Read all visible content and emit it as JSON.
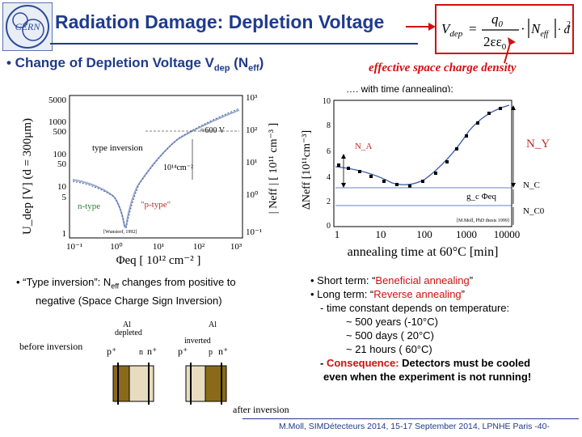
{
  "logo": {
    "text": "CERN"
  },
  "title": "Radiation Damage: Depletion Voltage",
  "formula": {
    "lhs": "V",
    "lhs_sub": "dep",
    "eq": "=",
    "num": "q",
    "num_sub": "0",
    "den": "2εε",
    "den_sub": "0",
    "dot": "·",
    "neff": "N",
    "neff_sub": "eff",
    "d2": "· d"
  },
  "bullet1": {
    "prefix": "• Change of Depletion Voltage V",
    "sub": "dep",
    "mid": " (N",
    "sub2": "eff",
    "suffix": ")"
  },
  "effective_label": "effective space charge density",
  "with_time": "…. with time (annealing):",
  "left_plot": {
    "y_label": "U_dep [V] (d = 300μm)",
    "y_ticks": [
      "5000",
      "1000",
      "500",
      "100",
      "50",
      "10",
      "5",
      "1"
    ],
    "right_label": "| Neff | [ 10¹¹ cm⁻³ ]",
    "right_ticks": [
      "10³",
      "10²",
      "10¹",
      "10⁰",
      "10⁻¹"
    ],
    "x_ticks": [
      "10⁻¹",
      "10⁰",
      "10¹",
      "10²",
      "10³"
    ],
    "x_label": "Φeq [ 10¹² cm⁻² ]",
    "annotations": [
      "type inversion",
      "≈600 V",
      "10¹⁴cm⁻²",
      "n-type",
      "\"p-type\""
    ],
    "credit": "[Wunstorf, 1992]"
  },
  "right_plot": {
    "y_label": "ΔNeff [10¹¹cm⁻³]",
    "y_ticks": [
      "10",
      "8",
      "6",
      "4",
      "2",
      "0"
    ],
    "x_ticks": [
      "1",
      "10",
      "100",
      "1000",
      "10000"
    ],
    "x_label": "annealing time at 60°C [min]",
    "labels": {
      "na": "N_A",
      "ny": "N_Y",
      "nc": "N_C",
      "nc0": "N_C0",
      "gc": "g_c Φeq"
    },
    "credit": "[M.Moll, PhD thesis 1999]"
  },
  "inversion": {
    "line1_pre": "• “Type inversion”: N",
    "line1_sub": "eff",
    "line1_post": " changes from positive to",
    "line2": "negative (Space Charge Sign Inversion)"
  },
  "diagram": {
    "before": "before inversion",
    "after": "after inversion",
    "al": "Al",
    "depleted": "depleted",
    "inverted": "inverted",
    "p_plus": "p⁺",
    "n_plus": "n⁺",
    "n": "n",
    "p": "p"
  },
  "rhs": {
    "short_pre": "• Short term: “",
    "short_term": "Beneficial annealing",
    "short_post": "”",
    "long_pre": "• Long term: “",
    "long_term": "Reverse annealing",
    "long_post": "”",
    "tc": "- time constant depends on temperature:",
    "t1": "~ 500 years   (-10°C)",
    "t2": "~ 500 days   ( 20°C)",
    "t3": "~  21 hours   ( 60°C)",
    "cons_pre": "- ",
    "cons_word": "Consequence:",
    "cons_post": " Detectors must be cooled",
    "cons2": "even when the experiment is not running!"
  },
  "footer": "M.Moll, SIMDétecteurs 2014, 15-17 September 2014, LPNHE Paris  -40-"
}
